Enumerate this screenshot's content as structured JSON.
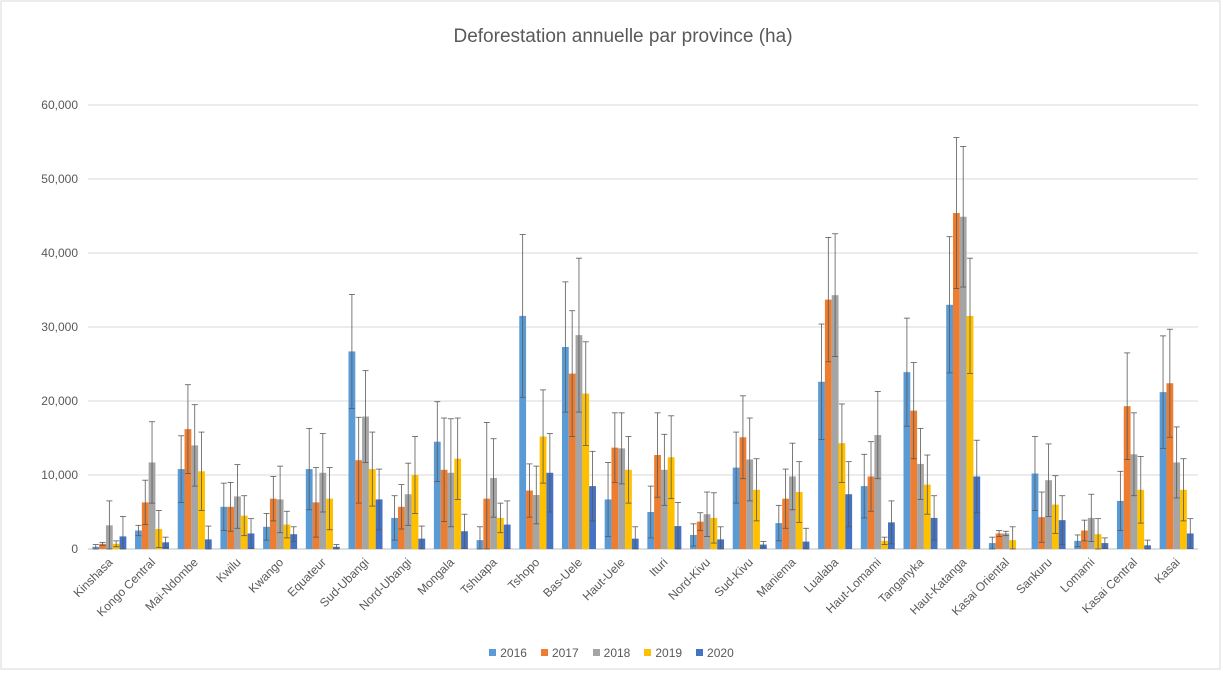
{
  "chart_data": {
    "type": "bar",
    "title": "Deforestation annuelle par province (ha)",
    "xlabel": "",
    "ylabel": "",
    "ylim": [
      0,
      60000
    ],
    "yticks": [
      "0",
      "10,000",
      "20,000",
      "30,000",
      "40,000",
      "50,000",
      "60,000"
    ],
    "ytick_values": [
      0,
      10000,
      20000,
      30000,
      40000,
      50000,
      60000
    ],
    "grid": true,
    "legend_position": "bottom",
    "error_bars": true,
    "categories": [
      "Kinshasa",
      "Kongo Central",
      "Mai-Ndombe",
      "Kwilu",
      "Kwango",
      "Equateur",
      "Sud-Ubangi",
      "Nord-Ubangi",
      "Mongala",
      "Tshuapa",
      "Tshopo",
      "Bas-Uele",
      "Haut-Uele",
      "Ituri",
      "Nord-Kivu",
      "Sud-Kivu",
      "Maniema",
      "Lualaba",
      "Haut-Lomami",
      "Tanganyka",
      "Haut-Katanga",
      "Kasai Oriental",
      "Sankuru",
      "Lomami",
      "Kasai Central",
      "Kasai"
    ],
    "series": [
      {
        "name": "2016",
        "color": "#5B9BD5",
        "values": [
          300,
          2500,
          10800,
          5700,
          3000,
          10800,
          26700,
          4200,
          14500,
          1200,
          31500,
          27300,
          6700,
          5000,
          1900,
          11000,
          3500,
          22600,
          8500,
          23900,
          33000,
          800,
          10200,
          1100,
          6500,
          21200
        ],
        "errors": [
          300,
          700,
          4500,
          3200,
          1800,
          5500,
          7700,
          3000,
          5400,
          1800,
          11000,
          8800,
          5000,
          3500,
          1500,
          4800,
          2400,
          7800,
          4300,
          7300,
          9200,
          800,
          5000,
          800,
          4000,
          7600
        ]
      },
      {
        "name": "2017",
        "color": "#ED7D31",
        "values": [
          700,
          6300,
          16200,
          5700,
          6800,
          6300,
          12000,
          5700,
          10700,
          6800,
          7900,
          23700,
          13700,
          12700,
          3700,
          15100,
          6800,
          33700,
          9800,
          18700,
          45400,
          2100,
          4300,
          2500,
          19300,
          22400
        ],
        "errors": [
          200,
          3000,
          6000,
          3300,
          3000,
          4700,
          5800,
          3000,
          7000,
          10300,
          3600,
          8500,
          4700,
          5700,
          1200,
          5600,
          4000,
          8400,
          4700,
          6500,
          10200,
          400,
          3400,
          1400,
          7200,
          7300
        ]
      },
      {
        "name": "2018",
        "color": "#A5A5A5",
        "values": [
          3200,
          11700,
          14000,
          7100,
          6700,
          10300,
          17900,
          7400,
          10300,
          9600,
          7300,
          28900,
          13600,
          10700,
          4700,
          12100,
          9800,
          34300,
          15400,
          11500,
          44900,
          2100,
          9300,
          4200,
          12800,
          11700
        ],
        "errors": [
          3300,
          5500,
          5500,
          4300,
          4500,
          5300,
          6200,
          4200,
          7300,
          5300,
          3900,
          10400,
          4800,
          4800,
          3000,
          5600,
          4500,
          8300,
          5900,
          4800,
          9500,
          300,
          4900,
          3200,
          5600,
          4800
        ]
      },
      {
        "name": "2019",
        "color": "#FFC000",
        "values": [
          700,
          2700,
          10500,
          4500,
          3300,
          6800,
          10800,
          10000,
          12200,
          4200,
          15200,
          21000,
          10700,
          12400,
          4200,
          8000,
          7700,
          14300,
          1100,
          8700,
          31500,
          1200,
          6000,
          2000,
          8000,
          8000
        ],
        "errors": [
          400,
          2500,
          5300,
          2700,
          1800,
          4200,
          5000,
          5200,
          5500,
          2000,
          6300,
          7000,
          4500,
          5600,
          3400,
          4200,
          4100,
          5300,
          500,
          4000,
          7800,
          1800,
          3900,
          2100,
          4500,
          4200
        ]
      },
      {
        "name": "2020",
        "color": "#4472C4",
        "values": [
          1700,
          900,
          1300,
          2100,
          2000,
          300,
          6700,
          1400,
          2400,
          3300,
          10300,
          8500,
          1400,
          3100,
          1300,
          600,
          1000,
          7400,
          3600,
          4200,
          9800,
          0,
          3900,
          800,
          500,
          2100
        ],
        "errors": [
          2700,
          700,
          1800,
          2000,
          1000,
          300,
          4100,
          1700,
          2300,
          3200,
          5300,
          4700,
          1600,
          3200,
          1700,
          400,
          1800,
          4400,
          2900,
          3000,
          4900,
          0,
          3300,
          700,
          700,
          2000
        ]
      }
    ]
  }
}
